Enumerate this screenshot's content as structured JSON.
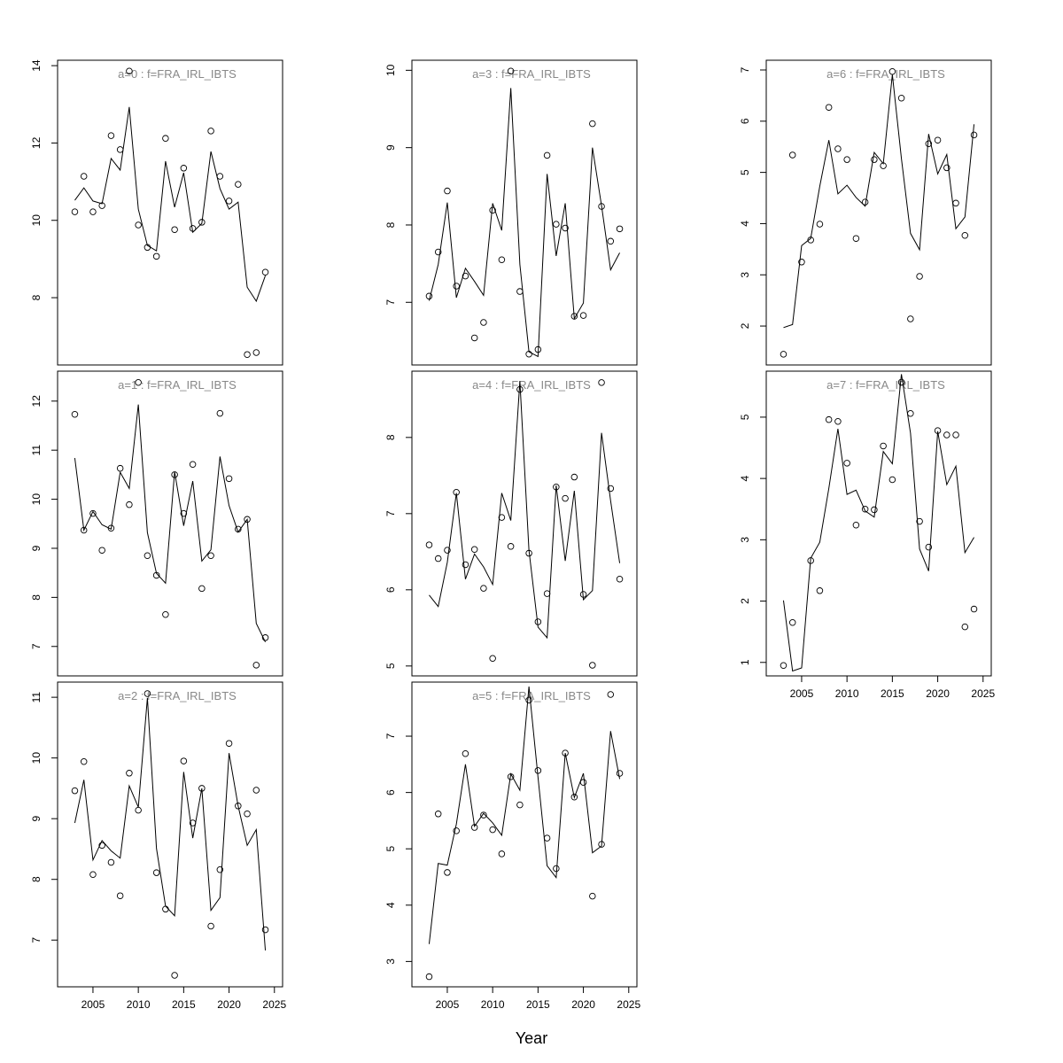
{
  "x_label": "Year",
  "chart_data": [
    {
      "type": "line",
      "title": "a=0  :  f=FRA_IRL_IBTS",
      "x": [
        2003,
        2004,
        2005,
        2006,
        2007,
        2008,
        2009,
        2010,
        2011,
        2012,
        2013,
        2014,
        2015,
        2016,
        2017,
        2018,
        2019,
        2020,
        2021,
        2022,
        2023,
        2024
      ],
      "xlim": [
        2001.1,
        2025.9
      ],
      "ylim": [
        6.26,
        14.14
      ],
      "yticks": [
        8,
        10,
        12,
        14
      ],
      "values": [
        10.52,
        10.84,
        10.5,
        10.43,
        11.6,
        11.3,
        12.93,
        10.29,
        9.35,
        9.21,
        11.53,
        10.34,
        11.23,
        9.69,
        9.92,
        11.78,
        10.82,
        10.29,
        10.47,
        8.27,
        7.91,
        8.57
      ],
      "observed": [
        10.22,
        11.14,
        10.22,
        10.38,
        12.19,
        11.83,
        13.86,
        9.88,
        9.3,
        9.07,
        12.12,
        9.76,
        11.35,
        9.79,
        9.95,
        12.31,
        11.14,
        10.5,
        10.93,
        6.53,
        6.58,
        8.66
      ]
    },
    {
      "type": "line",
      "title": "a=1  :  f=FRA_IRL_IBTS",
      "x": [
        2003,
        2004,
        2005,
        2006,
        2007,
        2008,
        2009,
        2010,
        2011,
        2012,
        2013,
        2014,
        2015,
        2016,
        2017,
        2018,
        2019,
        2020,
        2021,
        2022,
        2023,
        2024
      ],
      "xlim": [
        2001.1,
        2025.9
      ],
      "ylim": [
        6.4,
        12.61
      ],
      "yticks": [
        7,
        8,
        9,
        10,
        11,
        12
      ],
      "values": [
        10.84,
        9.37,
        9.75,
        9.48,
        9.39,
        10.55,
        10.22,
        11.93,
        9.32,
        8.49,
        8.29,
        10.56,
        9.46,
        10.37,
        8.74,
        8.97,
        10.87,
        9.87,
        9.33,
        9.59,
        7.47,
        7.09
      ],
      "observed": [
        11.73,
        9.37,
        9.71,
        8.96,
        9.41,
        10.63,
        9.89,
        12.38,
        8.85,
        8.45,
        7.65,
        10.5,
        9.71,
        10.71,
        8.18,
        8.85,
        11.75,
        10.42,
        9.39,
        9.59,
        6.62,
        7.18
      ]
    },
    {
      "type": "line",
      "title": "a=2  :  f=FRA_IRL_IBTS",
      "x": [
        2003,
        2004,
        2005,
        2006,
        2007,
        2008,
        2009,
        2010,
        2011,
        2012,
        2013,
        2014,
        2015,
        2016,
        2017,
        2018,
        2019,
        2020,
        2021,
        2022,
        2023,
        2024
      ],
      "xlim": [
        2001.1,
        2025.9
      ],
      "xticks": [
        2005,
        2010,
        2015,
        2020,
        2025
      ],
      "ylim": [
        6.23,
        11.25
      ],
      "yticks": [
        7,
        8,
        9,
        10,
        11
      ],
      "values": [
        8.93,
        9.64,
        8.32,
        8.64,
        8.47,
        8.35,
        9.54,
        9.19,
        10.99,
        8.51,
        7.56,
        7.4,
        9.77,
        8.68,
        9.5,
        7.49,
        7.7,
        10.08,
        9.21,
        8.56,
        8.82,
        6.83
      ],
      "observed": [
        9.46,
        9.94,
        8.08,
        8.56,
        8.28,
        7.73,
        9.75,
        9.14,
        11.06,
        8.11,
        7.51,
        6.42,
        9.95,
        8.93,
        9.5,
        7.23,
        8.16,
        10.24,
        9.21,
        9.08,
        9.47,
        7.17
      ]
    },
    {
      "type": "line",
      "title": "a=3  :  f=FRA_IRL_IBTS",
      "x": [
        2003,
        2004,
        2005,
        2006,
        2007,
        2008,
        2009,
        2010,
        2011,
        2012,
        2013,
        2014,
        2015,
        2016,
        2017,
        2018,
        2019,
        2020,
        2021,
        2022,
        2023,
        2024
      ],
      "xlim": [
        2001.1,
        2025.9
      ],
      "ylim": [
        6.19,
        10.13
      ],
      "yticks": [
        7,
        8,
        9,
        10
      ],
      "values": [
        7.02,
        7.49,
        8.29,
        7.06,
        7.44,
        7.27,
        7.09,
        8.28,
        7.93,
        9.77,
        7.49,
        6.36,
        6.3,
        8.66,
        7.6,
        8.28,
        6.79,
        6.99,
        9.0,
        8.25,
        7.42,
        7.64
      ],
      "observed": [
        7.08,
        7.65,
        8.44,
        7.21,
        7.34,
        6.54,
        6.74,
        8.19,
        7.55,
        9.99,
        7.14,
        6.33,
        6.39,
        8.9,
        8.01,
        7.96,
        6.82,
        6.83,
        9.31,
        8.24,
        7.79,
        7.95
      ]
    },
    {
      "type": "line",
      "title": "a=4  :  f=FRA_IRL_IBTS",
      "x": [
        2003,
        2004,
        2005,
        2006,
        2007,
        2008,
        2009,
        2010,
        2011,
        2012,
        2013,
        2014,
        2015,
        2016,
        2017,
        2018,
        2019,
        2020,
        2021,
        2022,
        2023,
        2024
      ],
      "xlim": [
        2001.1,
        2025.9
      ],
      "ylim": [
        4.87,
        8.87
      ],
      "yticks": [
        5,
        6,
        7,
        8
      ],
      "values": [
        5.93,
        5.78,
        6.36,
        7.27,
        6.14,
        6.47,
        6.3,
        6.07,
        7.27,
        6.91,
        8.74,
        6.52,
        5.51,
        5.37,
        7.37,
        6.38,
        7.3,
        5.87,
        5.99,
        8.06,
        7.17,
        6.35
      ],
      "observed": [
        6.59,
        6.41,
        6.52,
        7.28,
        6.33,
        6.53,
        6.02,
        5.1,
        6.95,
        6.57,
        8.63,
        6.48,
        5.58,
        5.95,
        7.35,
        7.2,
        7.48,
        5.94,
        5.01,
        8.72,
        7.33,
        6.14
      ]
    },
    {
      "type": "line",
      "title": "a=5  :  f=FRA_IRL_IBTS",
      "x": [
        2003,
        2004,
        2005,
        2006,
        2007,
        2008,
        2009,
        2010,
        2011,
        2012,
        2013,
        2014,
        2015,
        2016,
        2017,
        2018,
        2019,
        2020,
        2021,
        2022,
        2023,
        2024
      ],
      "xlim": [
        2001.1,
        2025.9
      ],
      "xticks": [
        2005,
        2010,
        2015,
        2020,
        2025
      ],
      "ylim": [
        2.55,
        7.96
      ],
      "yticks": [
        3,
        4,
        5,
        6,
        7
      ],
      "values": [
        3.31,
        4.74,
        4.71,
        5.44,
        6.5,
        5.4,
        5.63,
        5.46,
        5.24,
        6.33,
        6.04,
        7.88,
        6.27,
        4.7,
        4.49,
        6.7,
        5.91,
        6.34,
        4.93,
        5.05,
        7.09,
        6.24
      ],
      "observed": [
        2.73,
        5.62,
        4.58,
        5.32,
        6.69,
        5.38,
        5.6,
        5.34,
        4.91,
        6.28,
        5.78,
        7.64,
        6.39,
        5.19,
        4.65,
        6.7,
        5.92,
        6.18,
        4.16,
        5.08,
        7.74,
        6.34
      ]
    },
    {
      "type": "line",
      "title": "a=6  :  f=FRA_IRL_IBTS",
      "x": [
        2003,
        2004,
        2005,
        2006,
        2007,
        2008,
        2009,
        2010,
        2011,
        2012,
        2013,
        2014,
        2015,
        2016,
        2017,
        2018,
        2019,
        2020,
        2021,
        2022,
        2023,
        2024
      ],
      "xlim": [
        2001.1,
        2025.9
      ],
      "ylim": [
        1.24,
        7.19
      ],
      "yticks": [
        2,
        3,
        4,
        5,
        6,
        7
      ],
      "values": [
        1.97,
        2.03,
        3.57,
        3.71,
        4.73,
        5.63,
        4.58,
        4.75,
        4.51,
        4.34,
        5.39,
        5.17,
        6.91,
        5.27,
        3.81,
        3.49,
        5.75,
        4.97,
        5.35,
        3.9,
        4.13,
        5.94
      ],
      "observed": [
        1.45,
        5.34,
        3.25,
        3.68,
        3.99,
        6.27,
        5.46,
        5.25,
        3.71,
        4.42,
        5.25,
        5.13,
        6.97,
        6.45,
        2.14,
        2.97,
        5.56,
        5.63,
        5.09,
        4.4,
        3.77,
        5.73
      ]
    },
    {
      "type": "line",
      "title": "a=7  :  f=FRA_IRL_IBTS",
      "x": [
        2003,
        2004,
        2005,
        2006,
        2007,
        2008,
        2009,
        2010,
        2011,
        2012,
        2013,
        2014,
        2015,
        2016,
        2017,
        2018,
        2019,
        2020,
        2021,
        2022,
        2023,
        2024
      ],
      "xlim": [
        2001.1,
        2025.9
      ],
      "xticks": [
        2005,
        2010,
        2015,
        2020,
        2025
      ],
      "ylim": [
        0.78,
        5.75
      ],
      "yticks": [
        1,
        2,
        3,
        4,
        5
      ],
      "values": [
        2.01,
        0.86,
        0.91,
        2.7,
        2.96,
        3.84,
        4.81,
        3.74,
        3.81,
        3.47,
        3.37,
        4.44,
        4.24,
        5.7,
        4.74,
        2.85,
        2.49,
        4.77,
        3.9,
        4.2,
        2.79,
        3.04
      ],
      "observed": [
        0.95,
        1.65,
        null,
        2.66,
        2.17,
        4.96,
        4.93,
        4.25,
        3.24,
        3.5,
        3.49,
        4.53,
        3.98,
        5.57,
        5.06,
        3.3,
        2.88,
        4.78,
        4.71,
        4.71,
        1.58,
        1.87
      ]
    }
  ]
}
